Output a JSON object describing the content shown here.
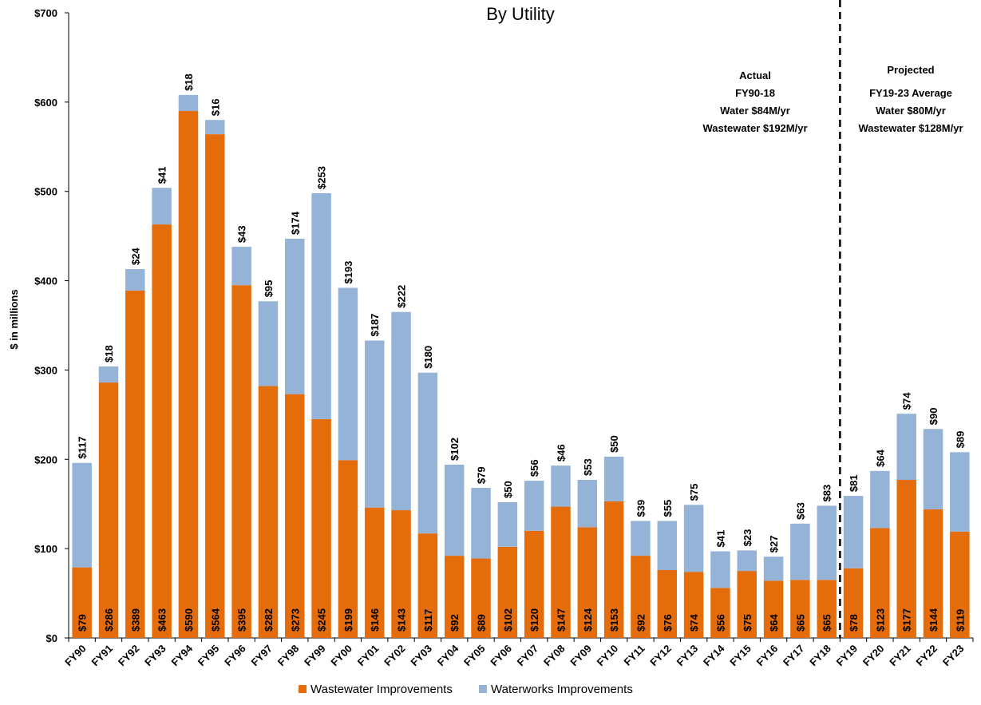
{
  "chart_data": {
    "type": "bar",
    "stacked": true,
    "title": "By Utility",
    "ylabel": "$ in millions",
    "xlabel": "",
    "ylim": [
      0,
      700
    ],
    "yticks": [
      0,
      100,
      200,
      300,
      400,
      500,
      600,
      700
    ],
    "ytick_labels": [
      "$0",
      "$100",
      "$200",
      "$300",
      "$400",
      "$500",
      "$600",
      "$700"
    ],
    "grid": false,
    "legend_position": "bottom",
    "categories": [
      "FY90",
      "FY91",
      "FY92",
      "FY93",
      "FY94",
      "FY95",
      "FY96",
      "FY97",
      "FY98",
      "FY99",
      "FY00",
      "FY01",
      "FY02",
      "FY03",
      "FY04",
      "FY05",
      "FY06",
      "FY07",
      "FY08",
      "FY09",
      "FY10",
      "FY11",
      "FY12",
      "FY13",
      "FY14",
      "FY15",
      "FY16",
      "FY17",
      "FY18",
      "FY19",
      "FY20",
      "FY21",
      "FY22",
      "FY23"
    ],
    "series": [
      {
        "name": "Wastewater Improvements",
        "color": "#e46c0a",
        "values": [
          79,
          286,
          389,
          463,
          590,
          564,
          395,
          282,
          273,
          245,
          199,
          146,
          143,
          117,
          92,
          89,
          102,
          120,
          147,
          124,
          153,
          92,
          76,
          74,
          56,
          75,
          64,
          65,
          65,
          78,
          123,
          177,
          144,
          119
        ],
        "labels": [
          "$79",
          "$286",
          "$389",
          "$463",
          "$590",
          "$564",
          "$395",
          "$282",
          "$273",
          "$245",
          "$199",
          "$146",
          "$143",
          "$117",
          "$92",
          "$89",
          "$102",
          "$120",
          "$147",
          "$124",
          "$153",
          "$92",
          "$76",
          "$74",
          "$56",
          "$75",
          "$64",
          "$65",
          "$65",
          "$78",
          "$123",
          "$177",
          "$144",
          "$119"
        ]
      },
      {
        "name": "Waterworks Improvements",
        "color": "#95b3d7",
        "values": [
          117,
          18,
          24,
          41,
          18,
          16,
          43,
          95,
          174,
          253,
          193,
          187,
          222,
          180,
          102,
          79,
          50,
          56,
          46,
          53,
          50,
          39,
          55,
          75,
          41,
          23,
          27,
          63,
          83,
          81,
          64,
          74,
          90,
          89
        ],
        "labels": [
          "$117",
          "$18",
          "$24",
          "$41",
          "$18",
          "$16",
          "$43",
          "$95",
          "$174",
          "$253",
          "$193",
          "$187",
          "$222",
          "$180",
          "$102",
          "$79",
          "$50",
          "$56",
          "$46",
          "$53",
          "$50",
          "$39",
          "$55",
          "$75",
          "$41",
          "$23",
          "$27",
          "$63",
          "$83",
          "$81",
          "$64",
          "$74",
          "$90",
          "$89"
        ]
      }
    ],
    "divider_after": "FY18",
    "annotations": {
      "actual": [
        "Actual",
        "FY90-18",
        "Water $84M/yr",
        "Wastewater $192M/yr"
      ],
      "projected": [
        "Projected",
        "FY19-23 Average",
        "Water $80M/yr",
        "Wastewater $128M/yr"
      ]
    }
  }
}
